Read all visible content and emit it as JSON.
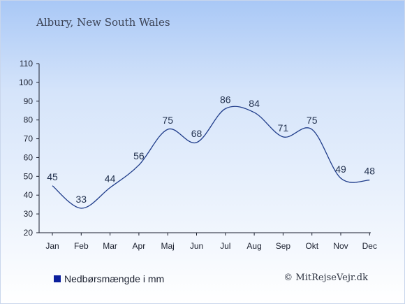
{
  "header": {
    "place": "Albury, New South Wales"
  },
  "legend": {
    "label": "Nedbørsmængde i mm",
    "color": "#0b1f9c"
  },
  "footer": {
    "credit": "© MitRejseVejr.dk"
  },
  "colors": {
    "line": "#1f3c8a",
    "axis": "#1a1f2e"
  },
  "chart_data": {
    "type": "line",
    "categories": [
      "Jan",
      "Feb",
      "Mar",
      "Apr",
      "Maj",
      "Jun",
      "Jul",
      "Aug",
      "Sep",
      "Okt",
      "Nov",
      "Dec"
    ],
    "series": [
      {
        "name": "Nedbørsmængde i mm",
        "values": [
          45,
          33,
          44,
          56,
          75,
          68,
          86,
          84,
          71,
          75,
          49,
          48
        ]
      }
    ],
    "yticks": [
      20,
      30,
      40,
      50,
      60,
      70,
      80,
      90,
      100,
      110
    ],
    "ylim": [
      20,
      110
    ],
    "grid": false,
    "legend_position": "bottom-left"
  }
}
